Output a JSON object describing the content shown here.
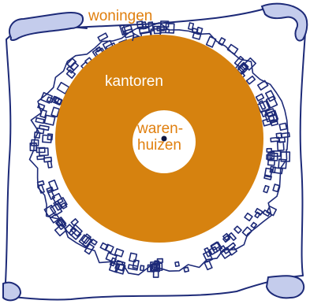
{
  "labels": {
    "woningen": "woningen",
    "kantoren": "kantoren",
    "warenhuizen_line1": "waren-",
    "warenhuizen_line2": "huizen"
  },
  "colors": {
    "ring_fill": "#d6820f",
    "center_fill": "#ffffff",
    "sketch_stroke": "#1d2a78",
    "scroll_fill": "#c4ccec",
    "label_outer": "#e07f0e",
    "label_ring": "#ffffff",
    "label_center": "#e07f0e",
    "center_dot": "#0d1640"
  },
  "icons": {
    "map_background": "hand-drawn-city-map-icon",
    "scroll_corners": "parchment-scroll-icon",
    "center_point": "center-dot-icon"
  }
}
